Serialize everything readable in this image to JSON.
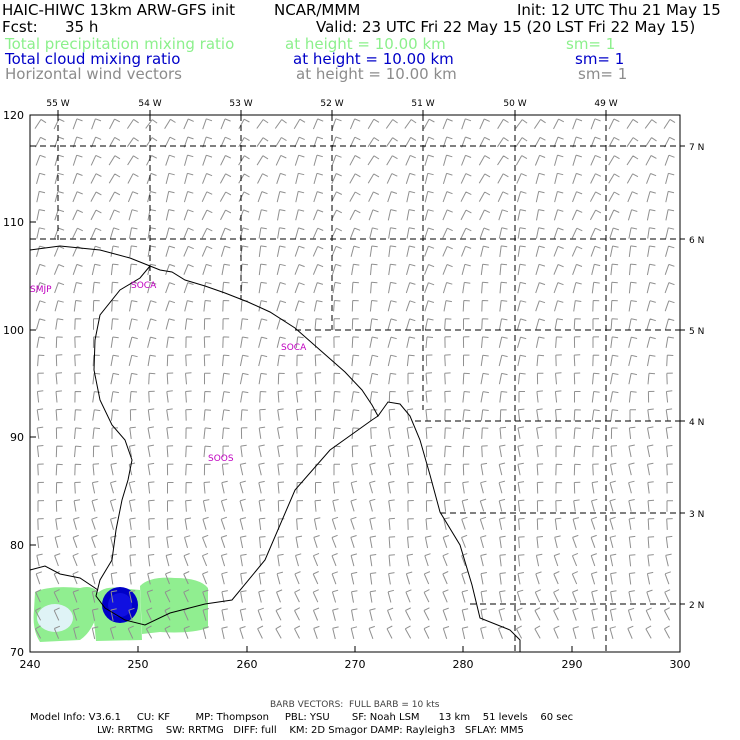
{
  "header": {
    "model_title": "HAIC-HIWC 13km ARW-GFS init",
    "org": "NCAR/MMM",
    "init": "Init: 12 UTC Thu 21 May 15",
    "fcst_label": "Fcst:",
    "fcst_value": "35 h",
    "valid": "Valid: 23 UTC Fri 22 May 15 (20 LST Fri 22 May 15)"
  },
  "fields": [
    {
      "name": "Total precipitation mixing ratio",
      "height": "at height = 10.00 km",
      "sm": "sm= 1",
      "color": "#90ee90"
    },
    {
      "name": "Total cloud mixing ratio",
      "height": "at height = 10.00 km",
      "sm": "sm= 1",
      "color": "#0000c8"
    },
    {
      "name": "Horizontal wind vectors",
      "height": "at height = 10.00 km",
      "sm": "sm= 1",
      "color": "#a0a0a0"
    }
  ],
  "axes": {
    "x_ticks": [
      "240",
      "250",
      "260",
      "270",
      "280",
      "290",
      "300"
    ],
    "y_ticks": [
      "70",
      "80",
      "90",
      "100",
      "110",
      "120"
    ],
    "lon_labels": [
      "55 W",
      "54 W",
      "53 W",
      "52 W",
      "51 W",
      "50 W",
      "49 W"
    ],
    "lat_labels": [
      "7 N",
      "6 N",
      "5 N",
      "4 N",
      "3 N",
      "2 N"
    ]
  },
  "stations": [
    "SMJP",
    "SOCA",
    "SOCA",
    "SOOS"
  ],
  "footer": {
    "barb_note": "BARB VECTORS:  FULL BARB = 10 kts",
    "line1": "Model Info: V3.6.1     CU: KF        MP: Thompson     PBL: YSU       SF: Noah LSM      13 km    51 levels    60 sec",
    "line2": "LW: RRTMG    SW: RRTMG   DIFF: full    KM: 2D Smagor DAMP: Rayleigh3   SFLAY: MM5"
  },
  "colors": {
    "precip": "#90ee90",
    "precip_light": "#dff3f6",
    "cloud": "#0000c8",
    "station": "#c000c0",
    "barb": "#909090"
  },
  "legend_colors": {
    "row1": "#8cf08c",
    "row2": "#0000c8",
    "row3": "#8c8c8c"
  }
}
